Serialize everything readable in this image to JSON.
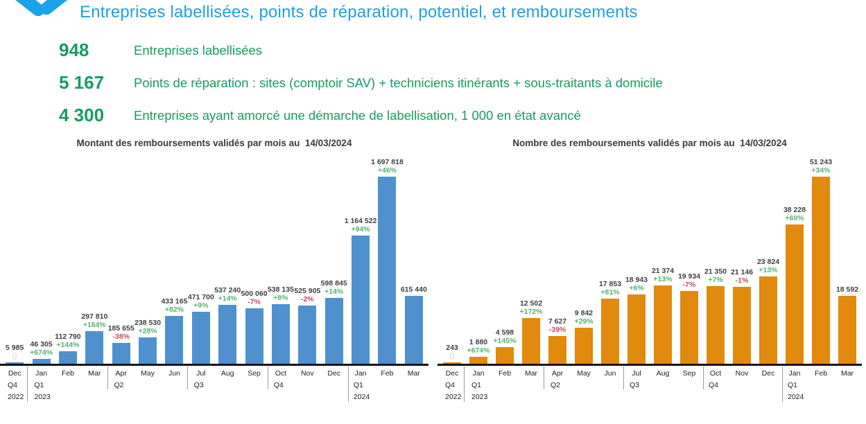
{
  "header": {
    "title": "Entreprises labellisées, points de réparation, potentiel, et remboursements",
    "title_color": "#1f9fe0"
  },
  "kpis": [
    {
      "value": "948",
      "label": "Entreprises labellisées"
    },
    {
      "value": "5 167",
      "label": "Points de réparation : sites (comptoir SAV) + techniciens itinérants + sous-traitants à domicile"
    },
    {
      "value": "4 300",
      "label": "Entreprises ayant amorcé une démarche de labellisation, 1 000 en état avancé"
    }
  ],
  "colors": {
    "kpi_green": "#169c60",
    "bar_blue": "#4e91ce",
    "bar_orange": "#e28a0e",
    "pct_green": "#53b16e",
    "pct_red": "#c9485b"
  },
  "chart_data": [
    {
      "type": "bar",
      "title": "Montant des remboursements validés par mois au  14/03/2024",
      "color": "#4e91ce",
      "categories": [
        "Dec",
        "Jan",
        "Feb",
        "Mar",
        "Apr",
        "May",
        "Jun",
        "Jul",
        "Aug",
        "Sep",
        "Oct",
        "Nov",
        "Dec",
        "Jan",
        "Feb",
        "Mar"
      ],
      "values": [
        5985,
        46305,
        112790,
        297810,
        185655,
        238530,
        433165,
        471700,
        537240,
        500060,
        538135,
        525905,
        598845,
        1164522,
        1697818,
        615440
      ],
      "value_labels": [
        "5 985",
        "46 305",
        "112 790",
        "297 810",
        "185 655",
        "238 530",
        "433 165",
        "471 700",
        "537 240",
        "500 060",
        "538 135",
        "525 905",
        "598 845",
        "1 164 522",
        "1 697 818",
        "615 440"
      ],
      "pct_labels": [
        "()",
        "+674%",
        "+144%",
        "+164%",
        "-38%",
        "+28%",
        "+82%",
        "+9%",
        "+14%",
        "-7%",
        "+8%",
        "-2%",
        "+14%",
        "+94%",
        "+46%",
        ""
      ],
      "quarters": [
        {
          "start": 0,
          "label": "Q4",
          "year": "2022"
        },
        {
          "start": 1,
          "label": "Q1",
          "year": "2023"
        },
        {
          "start": 4,
          "label": "Q2"
        },
        {
          "start": 7,
          "label": "Q3"
        },
        {
          "start": 10,
          "label": "Q4"
        },
        {
          "start": 13,
          "label": "Q1",
          "year": "2024"
        }
      ],
      "ylim": [
        0,
        1697818
      ],
      "grid": false,
      "legend": false
    },
    {
      "type": "bar",
      "title": "Nombre des remboursements validés par mois au  14/03/2024",
      "color": "#e28a0e",
      "categories": [
        "Dec",
        "Jan",
        "Feb",
        "Mar",
        "Apr",
        "May",
        "Jun",
        "Jul",
        "Aug",
        "Sep",
        "Oct",
        "Nov",
        "Dec",
        "Jan",
        "Feb",
        "Mar"
      ],
      "values": [
        243,
        1880,
        4598,
        12502,
        7627,
        9842,
        17853,
        18943,
        21374,
        19934,
        21350,
        21146,
        23824,
        38228,
        51243,
        18592
      ],
      "value_labels": [
        "243",
        "1 880",
        "4 598",
        "12 502",
        "7 627",
        "9 842",
        "17 853",
        "18 943",
        "21 374",
        "19 934",
        "21 350",
        "21 146",
        "23 824",
        "38 228",
        "51 243",
        "18 592"
      ],
      "pct_labels": [
        "()",
        "+674%",
        "+145%",
        "+172%",
        "-39%",
        "+29%",
        "+81%",
        "+6%",
        "+13%",
        "-7%",
        "+7%",
        "-1%",
        "+13%",
        "+60%",
        "+34%",
        ""
      ],
      "quarters": [
        {
          "start": 0,
          "label": "Q4",
          "year": "2022"
        },
        {
          "start": 1,
          "label": "Q1",
          "year": "2023"
        },
        {
          "start": 4,
          "label": "Q2"
        },
        {
          "start": 7,
          "label": "Q3"
        },
        {
          "start": 10,
          "label": "Q4"
        },
        {
          "start": 13,
          "label": "Q1",
          "year": "2024"
        }
      ],
      "ylim": [
        0,
        51243
      ],
      "grid": false,
      "legend": false
    }
  ]
}
